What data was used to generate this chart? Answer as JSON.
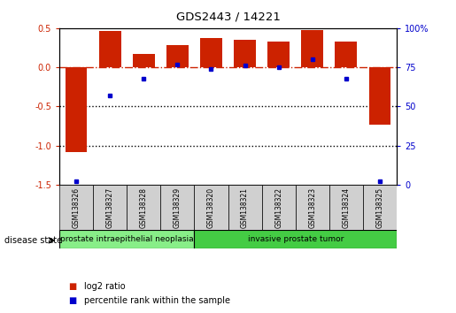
{
  "title": "GDS2443 / 14221",
  "samples": [
    "GSM138326",
    "GSM138327",
    "GSM138328",
    "GSM138329",
    "GSM138320",
    "GSM138321",
    "GSM138322",
    "GSM138323",
    "GSM138324",
    "GSM138325"
  ],
  "log2_ratio": [
    -1.08,
    0.47,
    0.17,
    0.28,
    0.37,
    0.35,
    0.33,
    0.48,
    0.33,
    -0.73
  ],
  "percentile_rank": [
    2,
    57,
    68,
    77,
    74,
    76,
    75,
    80,
    68,
    2
  ],
  "ylim_left": [
    -1.5,
    0.5
  ],
  "ylim_right": [
    0,
    100
  ],
  "yticks_left": [
    -1.5,
    -1.0,
    -0.5,
    0.0,
    0.5
  ],
  "yticks_right": [
    0,
    25,
    50,
    75,
    100
  ],
  "bar_color": "#cc2200",
  "dot_color": "#0000cc",
  "hline_color": "#cc2200",
  "dotted_line_color": "#000000",
  "disease_groups": [
    {
      "label": "prostate intraepithelial neoplasia",
      "start": 0,
      "end": 4,
      "color": "#88ee88"
    },
    {
      "label": "invasive prostate tumor",
      "start": 4,
      "end": 10,
      "color": "#44cc44"
    }
  ],
  "legend_log2": "log2 ratio",
  "legend_pct": "percentile rank within the sample",
  "disease_state_label": "disease state",
  "sample_box_color": "#d0d0d0",
  "bg_color": "#ffffff"
}
